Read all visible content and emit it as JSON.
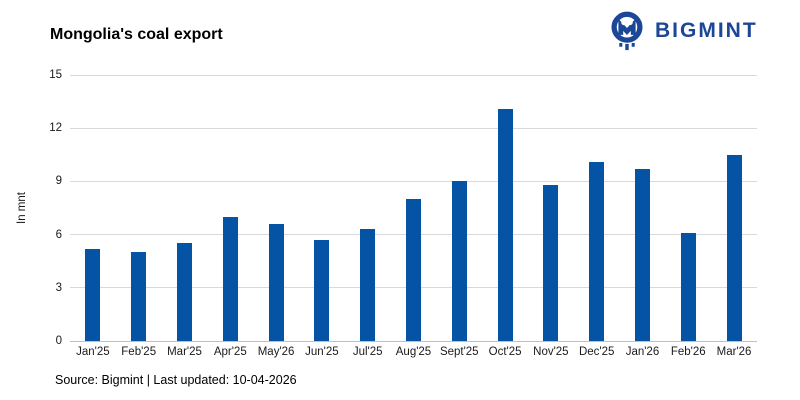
{
  "title": "Mongolia's coal export",
  "logo": {
    "brand": "BIGMINT",
    "icon": "bigmint-logo-icon",
    "color": "#1c4696"
  },
  "footer": {
    "source_line": "Source: Bigmint | Last updated: 10-04-2026"
  },
  "chart_data": {
    "type": "bar",
    "title": "Mongolia's coal export",
    "categories": [
      "Jan'25",
      "Feb'25",
      "Mar'25",
      "Apr'25",
      "May'26",
      "Jun'25",
      "Jul'25",
      "Aug'25",
      "Sept'25",
      "Oct'25",
      "Nov'25",
      "Dec'25",
      "Jan'26",
      "Feb'26",
      "Mar'26"
    ],
    "values": [
      5.2,
      5.0,
      5.5,
      7.0,
      6.6,
      5.7,
      6.3,
      8.0,
      9.0,
      13.1,
      8.8,
      10.1,
      9.7,
      6.1,
      10.5
    ],
    "xlabel": "",
    "ylabel": "In mnt",
    "ylim": [
      0,
      15
    ],
    "yticks": [
      0,
      3,
      6,
      9,
      12,
      15
    ],
    "grid": true,
    "legend": false,
    "bar_color": "#0553a4",
    "gridline_color": "#d9d9d9",
    "axis_line_color": "#bfbfbf"
  }
}
